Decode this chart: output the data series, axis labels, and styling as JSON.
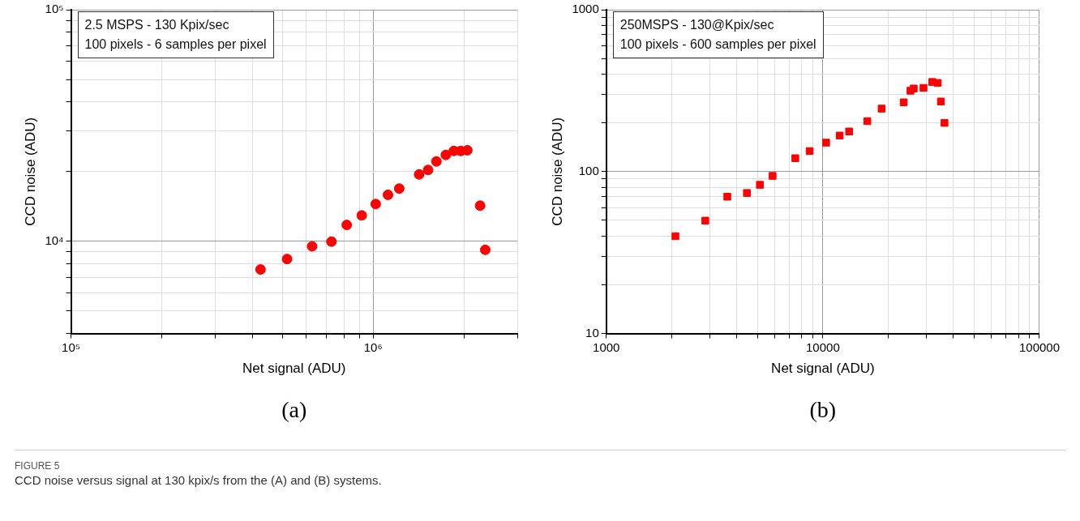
{
  "chart_data": [
    {
      "type": "scatter",
      "xlabel": "Net signal (ADU)",
      "ylabel": "CCD noise (ADU)",
      "log": "xy",
      "grid": true,
      "marker": "circle",
      "legend": false,
      "xlim": [
        100000,
        3000000
      ],
      "ylim": [
        4000,
        100000
      ],
      "xticks": [
        {
          "value": 100000,
          "label": "10⁵"
        },
        {
          "value": 200000,
          "label": null
        },
        {
          "value": 300000,
          "label": null
        },
        {
          "value": 400000,
          "label": null
        },
        {
          "value": 500000,
          "label": null
        },
        {
          "value": 600000,
          "label": null
        },
        {
          "value": 700000,
          "label": null
        },
        {
          "value": 800000,
          "label": null
        },
        {
          "value": 900000,
          "label": null
        },
        {
          "value": 1000000,
          "label": "10⁶"
        },
        {
          "value": 2000000,
          "label": null
        },
        {
          "value": 3000000,
          "label": null
        }
      ],
      "yticks": [
        {
          "value": 4000,
          "label": null
        },
        {
          "value": 5000,
          "label": null
        },
        {
          "value": 6000,
          "label": null
        },
        {
          "value": 7000,
          "label": null
        },
        {
          "value": 8000,
          "label": null
        },
        {
          "value": 9000,
          "label": null
        },
        {
          "value": 10000,
          "label": "10⁴"
        },
        {
          "value": 20000,
          "label": null
        },
        {
          "value": 30000,
          "label": null
        },
        {
          "value": 40000,
          "label": null
        },
        {
          "value": 50000,
          "label": null
        },
        {
          "value": 60000,
          "label": null
        },
        {
          "value": 70000,
          "label": null
        },
        {
          "value": 80000,
          "label": null
        },
        {
          "value": 90000,
          "label": null
        },
        {
          "value": 100000,
          "label": "10⁵"
        }
      ],
      "series": [
        {
          "color": "#ff0000",
          "x": [
            424000,
            519000,
            628000,
            728000,
            818000,
            917000,
            1020000,
            1120000,
            1220000,
            1420000,
            1520000,
            1620000,
            1740000,
            1850000,
            1950000,
            2050000,
            2260000,
            2350000
          ],
          "values": [
            7560,
            8390,
            9520,
            9970,
            11770,
            12940,
            14490,
            15880,
            16900,
            19450,
            20340,
            22130,
            23620,
            24560,
            24560,
            24730,
            14260,
            9190
          ]
        }
      ],
      "annotations": [
        "2.5 MSPS - 130 Kpix/sec",
        "100 pixels - 6 samples per pixel",
        "(a)"
      ]
    },
    {
      "type": "scatter",
      "xlabel": "Net signal (ADU)",
      "ylabel": "CCD noise (ADU)",
      "log": "xy",
      "grid": true,
      "marker": "square",
      "legend": false,
      "xlim": [
        1000,
        100000
      ],
      "ylim": [
        10,
        1000
      ],
      "xticks": [
        1000,
        {
          "value": 2000,
          "label": null
        },
        {
          "value": 3000,
          "label": null
        },
        {
          "value": 4000,
          "label": null
        },
        {
          "value": 5000,
          "label": null
        },
        {
          "value": 6000,
          "label": null
        },
        {
          "value": 7000,
          "label": null
        },
        {
          "value": 8000,
          "label": null
        },
        {
          "value": 9000,
          "label": null
        },
        10000,
        {
          "value": 20000,
          "label": null
        },
        {
          "value": 30000,
          "label": null
        },
        {
          "value": 40000,
          "label": null
        },
        {
          "value": 50000,
          "label": null
        },
        {
          "value": 60000,
          "label": null
        },
        {
          "value": 70000,
          "label": null
        },
        {
          "value": 80000,
          "label": null
        },
        {
          "value": 90000,
          "label": null
        },
        100000
      ],
      "yticks": [
        10,
        {
          "value": 20,
          "label": null
        },
        {
          "value": 30,
          "label": null
        },
        {
          "value": 40,
          "label": null
        },
        {
          "value": 50,
          "label": null
        },
        {
          "value": 60,
          "label": null
        },
        {
          "value": 70,
          "label": null
        },
        {
          "value": 80,
          "label": null
        },
        {
          "value": 90,
          "label": null
        },
        100,
        {
          "value": 200,
          "label": null
        },
        {
          "value": 300,
          "label": null
        },
        {
          "value": 400,
          "label": null
        },
        {
          "value": 500,
          "label": null
        },
        {
          "value": 600,
          "label": null
        },
        {
          "value": 700,
          "label": null
        },
        {
          "value": 800,
          "label": null
        },
        {
          "value": 900,
          "label": null
        },
        1000
      ],
      "series": [
        {
          "color": "#ff0000",
          "x": [
            2085,
            2865,
            3620,
            4460,
            5120,
            5860,
            7460,
            8690,
            10350,
            11960,
            13220,
            16040,
            18680,
            23620,
            25380,
            26280,
            29150,
            32010,
            33910,
            35080,
            36440
          ],
          "values": [
            39.9,
            49.8,
            70.0,
            73.8,
            82.9,
            94.1,
            121,
            134,
            151,
            167,
            177,
            205,
            245,
            268,
            316,
            326,
            329,
            358,
            353,
            271,
            200
          ]
        }
      ],
      "annotations": [
        "250MSPS - 130@Kpix/sec",
        "100 pixels - 600 samples per pixel",
        "(b)",
        "FIGURE 5",
        "CCD noise versus signal at 130 kpix/s from the (A) and (B) systems."
      ]
    }
  ]
}
